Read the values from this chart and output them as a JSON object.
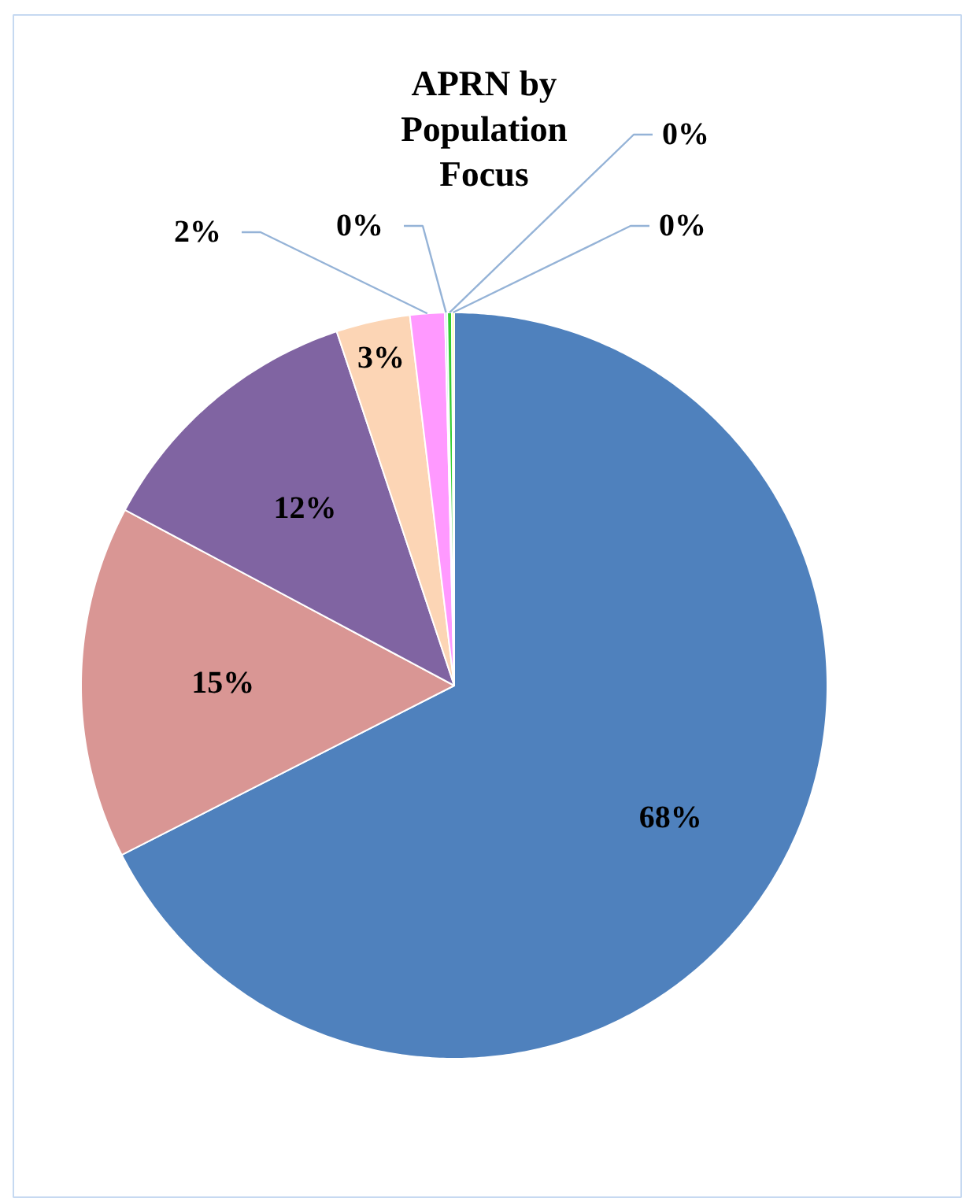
{
  "chart_data": {
    "type": "pie",
    "title": "APRN by\nPopulation\nFocus",
    "categories": [
      null,
      null,
      null,
      null,
      null,
      null,
      null,
      null
    ],
    "values": [
      67.5,
      15.3,
      12.1,
      3.2,
      1.5,
      0.1,
      0.2,
      0.1
    ],
    "value_labels": [
      "68%",
      "15%",
      "12%",
      "3%",
      "2%",
      "0%",
      "0%",
      "0%"
    ],
    "colors": [
      "#4f81bd",
      "#d99694",
      "#8064a2",
      "#fcd5b5",
      "#ff99ff",
      "#b7dee8",
      "#33cc33",
      "#ffff66"
    ],
    "legend": false
  }
}
